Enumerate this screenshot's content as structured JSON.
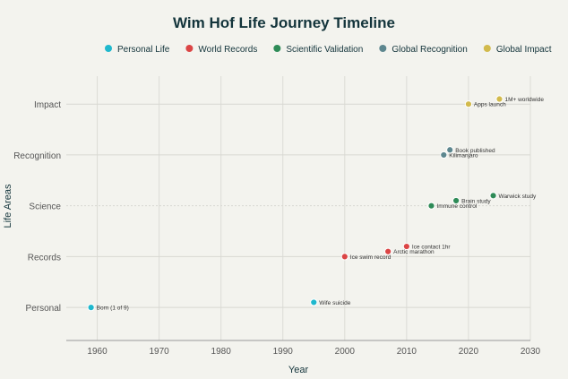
{
  "chart_data": {
    "type": "scatter",
    "title": "Wim Hof Life Journey Timeline",
    "xlabel": "Year",
    "ylabel": "Life Areas",
    "xlim": [
      1955,
      2030
    ],
    "ylim": [
      -0.65,
      4.55
    ],
    "xticks": [
      1960,
      1970,
      1980,
      1990,
      2000,
      2010,
      2020,
      2030
    ],
    "ycategories": [
      "Personal",
      "Records",
      "Science",
      "Recognition",
      "Impact"
    ],
    "legend_position": "top-center",
    "grid": true,
    "series": [
      {
        "name": "Personal Life",
        "color": "#1fb8cd",
        "points": [
          {
            "x": 1959,
            "y": 0,
            "label": "Born (1 of 9)"
          },
          {
            "x": 1995,
            "y": 0.1,
            "label": "Wife suicide"
          }
        ]
      },
      {
        "name": "World Records",
        "color": "#db4545",
        "points": [
          {
            "x": 2000,
            "y": 1,
            "label": "Ice swim record"
          },
          {
            "x": 2007,
            "y": 1.1,
            "label": "Arctic marathon"
          },
          {
            "x": 2010,
            "y": 1.2,
            "label": "Ice contact 1hr"
          }
        ]
      },
      {
        "name": "Scientific Validation",
        "color": "#2e8b57",
        "points": [
          {
            "x": 2014,
            "y": 2,
            "label": "Immune control"
          },
          {
            "x": 2018,
            "y": 2.1,
            "label": "Brain study"
          },
          {
            "x": 2024,
            "y": 2.2,
            "label": "Warwick study"
          }
        ]
      },
      {
        "name": "Global Recognition",
        "color": "#5d878f",
        "points": [
          {
            "x": 2016,
            "y": 3,
            "label": "Kilimanjaro"
          },
          {
            "x": 2017,
            "y": 3.1,
            "label": "Book published"
          }
        ]
      },
      {
        "name": "Global Impact",
        "color": "#d2ba4c",
        "points": [
          {
            "x": 2020,
            "y": 4,
            "label": "Apps launch"
          },
          {
            "x": 2025,
            "y": 4.1,
            "label": "1M+ worldwide"
          }
        ]
      }
    ]
  }
}
